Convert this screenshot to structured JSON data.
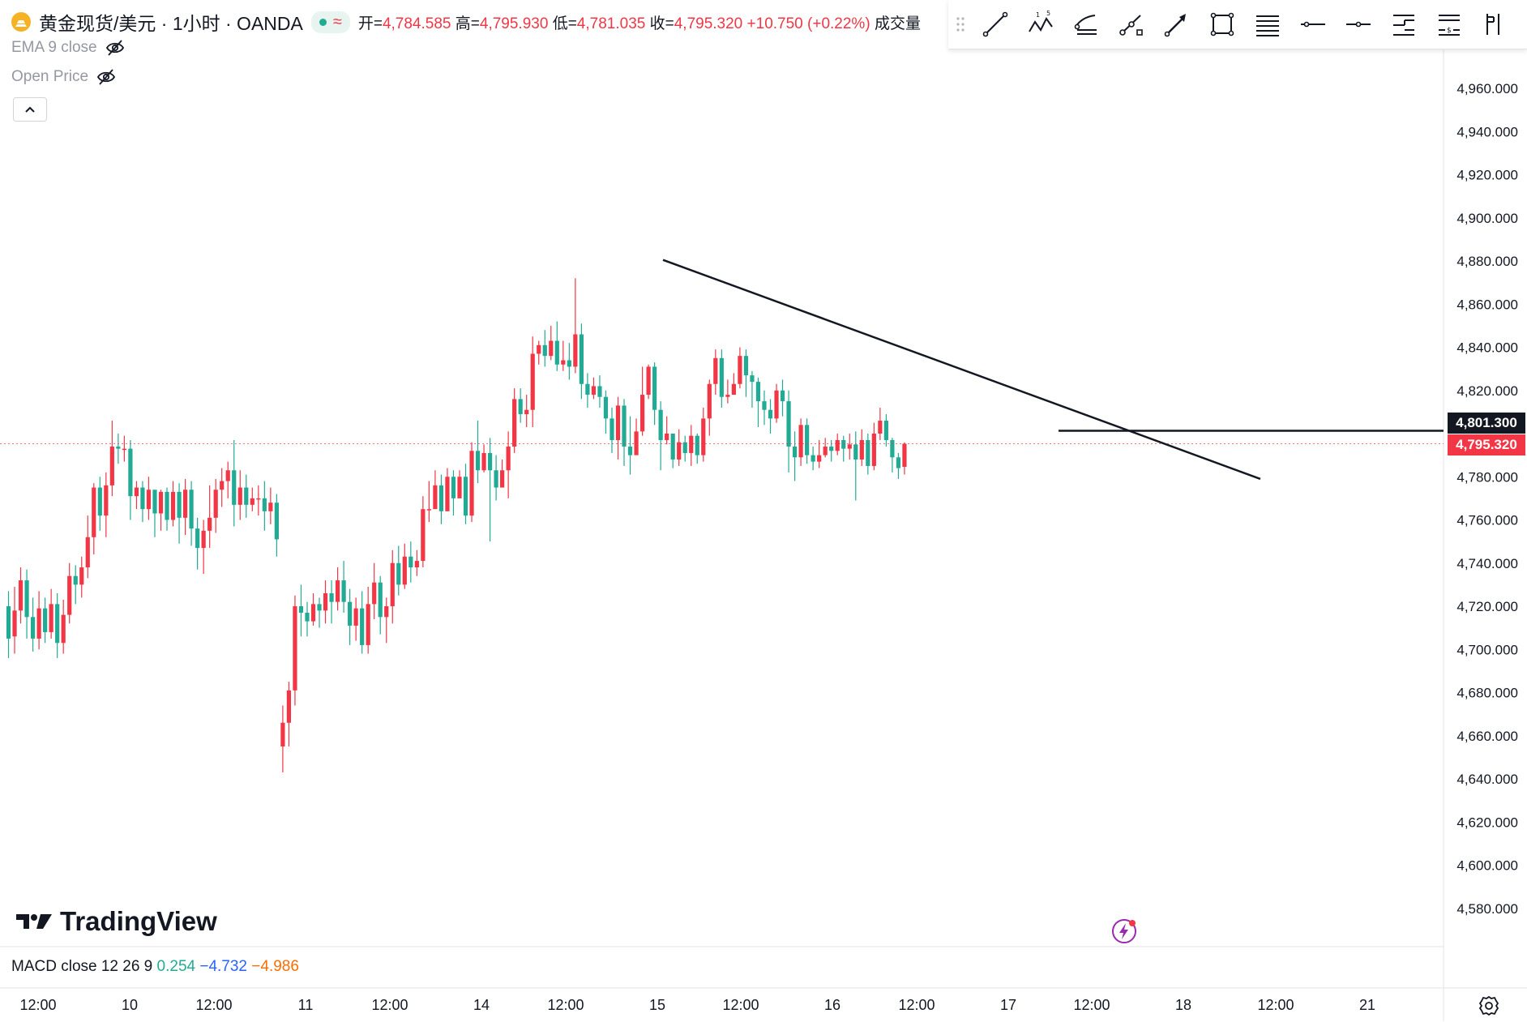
{
  "header": {
    "symbol_title": "黄金现货/美元 · 1小时 · OANDA",
    "status_symbol": "≈",
    "open_label": "开=",
    "open_value": "4,784.585",
    "high_label": "高=",
    "high_value": "4,795.930",
    "low_label": "低=",
    "low_value": "4,781.035",
    "close_label": "收=",
    "close_value": "4,795.320",
    "change": "+10.750 (+0.22%)",
    "volume_label": "成交量"
  },
  "indicators": {
    "ema_label": "EMA 9 close",
    "open_price_label": "Open Price"
  },
  "brand": {
    "name": "TradingView"
  },
  "macd": {
    "label": "MACD close 12 26 9",
    "v1": "0.254",
    "v2": "−4.732",
    "v3": "−4.986",
    "colors": {
      "v1": "#22ab94",
      "v2": "#2962ff",
      "v3": "#ff6d00"
    }
  },
  "toolbar": {
    "icons": [
      "trend-line-icon",
      "xabcd-pattern-icon",
      "pitchfork-icon",
      "curve-icon",
      "arrow-icon",
      "rectangle-icon",
      "parallel-channel-icon",
      "horizontal-ray-icon",
      "horizontal-line-icon",
      "long-position-icon",
      "short-position-icon",
      "price-range-icon"
    ]
  },
  "chart_data": {
    "type": "candlestick",
    "title": "黄金现货/美元 · 1小时 · OANDA",
    "colors": {
      "up": "#f23645",
      "down": "#22ab94"
    },
    "y_axis": {
      "ticks": [
        "4,960.000",
        "4,940.000",
        "4,920.000",
        "4,900.000",
        "4,880.000",
        "4,860.000",
        "4,840.000",
        "4,820.000",
        "4,780.000",
        "4,760.000",
        "4,740.000",
        "4,720.000",
        "4,700.000",
        "4,680.000",
        "4,660.000",
        "4,640.000",
        "4,620.000",
        "4,600.000",
        "4,580.000"
      ],
      "range": [
        4570,
        4980
      ]
    },
    "x_axis": {
      "ticks": [
        "12:00",
        "10",
        "12:00",
        "11",
        "12:00",
        "14",
        "12:00",
        "15",
        "12:00",
        "16",
        "12:00",
        "17",
        "12:00",
        "18",
        "12:00",
        "21"
      ]
    },
    "current_price": {
      "label": "4,795.320",
      "value": 4795.32,
      "color": "#f23645"
    },
    "horizontal_line": {
      "label": "4,801.300",
      "value": 4801.3
    },
    "trend_line": {
      "from_value": 4880.5,
      "to_value": 4779.0
    },
    "candles": [
      [
        4720,
        4705,
        4727,
        4696
      ],
      [
        4706,
        4718,
        4729,
        4698
      ],
      [
        4718,
        4732,
        4738,
        4712
      ],
      [
        4732,
        4715,
        4737,
        4705
      ],
      [
        4715,
        4705,
        4724,
        4699
      ],
      [
        4705,
        4719,
        4727,
        4700
      ],
      [
        4719,
        4708,
        4724,
        4703
      ],
      [
        4708,
        4721,
        4728,
        4705
      ],
      [
        4721,
        4703,
        4726,
        4696
      ],
      [
        4703,
        4716,
        4723,
        4698
      ],
      [
        4716,
        4734,
        4740,
        4712
      ],
      [
        4734,
        4730,
        4739,
        4721
      ],
      [
        4730,
        4738,
        4743,
        4724
      ],
      [
        4738,
        4752,
        4762,
        4733
      ],
      [
        4752,
        4775,
        4777,
        4744
      ],
      [
        4775,
        4762,
        4780,
        4755
      ],
      [
        4762,
        4776,
        4782,
        4752
      ],
      [
        4776,
        4794,
        4806,
        4771
      ],
      [
        4794,
        4793,
        4800,
        4786
      ],
      [
        4793,
        4793,
        4799,
        4787
      ],
      [
        4793,
        4771,
        4797,
        4760
      ],
      [
        4771,
        4775,
        4778,
        4765
      ],
      [
        4775,
        4765,
        4778,
        4759
      ],
      [
        4765,
        4774,
        4780,
        4760
      ],
      [
        4774,
        4763,
        4770,
        4752
      ],
      [
        4763,
        4773,
        4774,
        4755
      ],
      [
        4773,
        4760,
        4775,
        4755
      ],
      [
        4760,
        4773,
        4778,
        4757
      ],
      [
        4773,
        4761,
        4777,
        4749
      ],
      [
        4761,
        4774,
        4779,
        4753
      ],
      [
        4774,
        4756,
        4778,
        4748
      ],
      [
        4756,
        4747,
        4761,
        4737
      ],
      [
        4747,
        4755,
        4760,
        4735
      ],
      [
        4755,
        4761,
        4776,
        4747
      ],
      [
        4761,
        4774,
        4779,
        4754
      ],
      [
        4774,
        4778,
        4784,
        4766
      ],
      [
        4778,
        4783,
        4787,
        4770
      ],
      [
        4783,
        4767,
        4797,
        4757
      ],
      [
        4767,
        4775,
        4783,
        4760
      ],
      [
        4775,
        4767,
        4781,
        4761
      ],
      [
        4767,
        4770,
        4775,
        4764
      ],
      [
        4770,
        4770,
        4776,
        4762
      ],
      [
        4770,
        4764,
        4778,
        4755
      ],
      [
        4764,
        4768,
        4775,
        4758
      ],
      [
        4768,
        4751,
        4772,
        4743
      ],
      [
        4655,
        4666,
        4674,
        4643
      ],
      [
        4666,
        4681,
        4685,
        4655
      ],
      [
        4681,
        4720,
        4725,
        4674
      ],
      [
        4720,
        4717,
        4730,
        4706
      ],
      [
        4717,
        4713,
        4722,
        4706
      ],
      [
        4713,
        4721,
        4726,
        4711
      ],
      [
        4721,
        4718,
        4724,
        4710
      ],
      [
        4718,
        4726,
        4732,
        4712
      ],
      [
        4726,
        4722,
        4732,
        4712
      ],
      [
        4722,
        4732,
        4738,
        4718
      ],
      [
        4732,
        4722,
        4741,
        4717
      ],
      [
        4722,
        4711,
        4728,
        4702
      ],
      [
        4711,
        4719,
        4724,
        4704
      ],
      [
        4719,
        4702,
        4727,
        4698
      ],
      [
        4702,
        4721,
        4729,
        4698
      ],
      [
        4721,
        4731,
        4740,
        4714
      ],
      [
        4731,
        4715,
        4734,
        4707
      ],
      [
        4715,
        4720,
        4724,
        4703
      ],
      [
        4720,
        4740,
        4746,
        4712
      ],
      [
        4740,
        4730,
        4748,
        4725
      ],
      [
        4730,
        4743,
        4749,
        4728
      ],
      [
        4743,
        4738,
        4750,
        4731
      ],
      [
        4738,
        4741,
        4746,
        4734
      ],
      [
        4741,
        4765,
        4771,
        4738
      ],
      [
        4765,
        4765,
        4778,
        4759
      ],
      [
        4765,
        4776,
        4783,
        4767
      ],
      [
        4776,
        4764,
        4781,
        4758
      ],
      [
        4764,
        4780,
        4784,
        4767
      ],
      [
        4780,
        4770,
        4783,
        4762
      ],
      [
        4770,
        4780,
        4783,
        4772
      ],
      [
        4780,
        4762,
        4786,
        4758
      ],
      [
        4762,
        4792,
        4796,
        4759
      ],
      [
        4792,
        4783,
        4806,
        4777
      ],
      [
        4783,
        4791,
        4795,
        4782
      ],
      [
        4791,
        4783,
        4798,
        4750
      ],
      [
        4783,
        4775,
        4790,
        4769
      ],
      [
        4775,
        4783,
        4788,
        4775
      ],
      [
        4783,
        4794,
        4801,
        4770
      ],
      [
        4794,
        4816,
        4821,
        4791
      ],
      [
        4816,
        4809,
        4821,
        4805
      ],
      [
        4809,
        4811,
        4818,
        4803
      ],
      [
        4811,
        4837,
        4845,
        4803
      ],
      [
        4837,
        4841,
        4843,
        4832
      ],
      [
        4841,
        4836,
        4848,
        4831
      ],
      [
        4836,
        4843,
        4850,
        4834
      ],
      [
        4843,
        4832,
        4852,
        4829
      ],
      [
        4832,
        4834,
        4843,
        4829
      ],
      [
        4834,
        4831,
        4842,
        4825
      ],
      [
        4831,
        4846,
        4872,
        4828
      ],
      [
        4846,
        4823,
        4851,
        4816
      ],
      [
        4823,
        4818,
        4828,
        4812
      ],
      [
        4818,
        4822,
        4826,
        4816
      ],
      [
        4822,
        4817,
        4827,
        4812
      ],
      [
        4817,
        4807,
        4820,
        4800
      ],
      [
        4807,
        4797,
        4812,
        4791
      ],
      [
        4797,
        4813,
        4817,
        4788
      ],
      [
        4813,
        4794,
        4816,
        4785
      ],
      [
        4794,
        4790,
        4808,
        4781
      ],
      [
        4790,
        4801,
        4807,
        4793
      ],
      [
        4801,
        4818,
        4831,
        4799
      ],
      [
        4818,
        4831,
        4832,
        4816
      ],
      [
        4831,
        4811,
        4833,
        4804
      ],
      [
        4811,
        4797,
        4815,
        4783
      ],
      [
        4797,
        4800,
        4808,
        4795
      ],
      [
        4800,
        4788,
        4800,
        4784
      ],
      [
        4788,
        4796,
        4802,
        4785
      ],
      [
        4796,
        4791,
        4799,
        4787
      ],
      [
        4791,
        4799,
        4804,
        4785
      ],
      [
        4799,
        4790,
        4800,
        4786
      ],
      [
        4790,
        4807,
        4812,
        4787
      ],
      [
        4807,
        4823,
        4825,
        4799
      ],
      [
        4823,
        4835,
        4839,
        4818
      ],
      [
        4835,
        4817,
        4839,
        4812
      ],
      [
        4817,
        4818,
        4825,
        4814
      ],
      [
        4818,
        4823,
        4828,
        4819
      ],
      [
        4823,
        4836,
        4840,
        4821
      ],
      [
        4836,
        4827,
        4839,
        4817
      ],
      [
        4827,
        4824,
        4829,
        4812
      ],
      [
        4824,
        4815,
        4826,
        4803
      ],
      [
        4815,
        4811,
        4820,
        4804
      ],
      [
        4811,
        4807,
        4816,
        4800
      ],
      [
        4807,
        4820,
        4823,
        4805
      ],
      [
        4820,
        4815,
        4825,
        4808
      ],
      [
        4815,
        4794,
        4820,
        4782
      ],
      [
        4794,
        4789,
        4801,
        4778
      ],
      [
        4789,
        4804,
        4807,
        4785
      ],
      [
        4804,
        4790,
        4807,
        4786
      ],
      [
        4790,
        4787,
        4794,
        4783
      ],
      [
        4787,
        4790,
        4797,
        4784
      ],
      [
        4790,
        4794,
        4798,
        4789
      ],
      [
        4794,
        4792,
        4797,
        4787
      ],
      [
        4792,
        4797,
        4800,
        4790
      ],
      [
        4797,
        4793,
        4799,
        4787
      ],
      [
        4793,
        4795,
        4800,
        4788
      ],
      [
        4795,
        4788,
        4801,
        4769
      ],
      [
        4788,
        4797,
        4802,
        4785
      ],
      [
        4797,
        4785,
        4800,
        4781
      ],
      [
        4785,
        4800,
        4805,
        4783
      ],
      [
        4800,
        4806,
        4812,
        4797
      ],
      [
        4806,
        4797,
        4809,
        4794
      ],
      [
        4797,
        4789,
        4798,
        4782
      ],
      [
        4789,
        4784,
        4791,
        4779
      ],
      [
        4784.585,
        4795.32,
        4795.93,
        4781.035
      ]
    ]
  }
}
